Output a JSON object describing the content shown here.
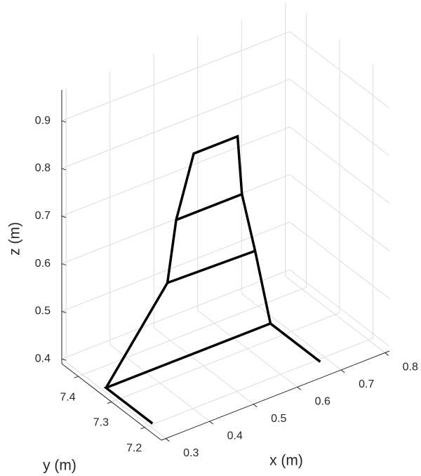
{
  "chart_data": {
    "type": "line3d",
    "xlabel": "x (m)",
    "ylabel": "y (m)",
    "zlabel": "z (m)",
    "xlim": [
      0.29,
      0.81
    ],
    "ylim": [
      7.15,
      7.45
    ],
    "zlim": [
      0.39,
      0.965
    ],
    "xticks": [
      0.3,
      0.4,
      0.5,
      0.6,
      0.7,
      0.8
    ],
    "yticks": [
      7.2,
      7.3,
      7.4
    ],
    "zticks": [
      0.4,
      0.5,
      0.6,
      0.7,
      0.8,
      0.9
    ],
    "grid": true,
    "color": "#000000",
    "series": [
      {
        "x": [
          0.3,
          0.3,
          0.675,
          0.675
        ],
        "y": [
          7.19,
          7.33,
          7.33,
          7.18
        ],
        "z": [
          0.4,
          0.4,
          0.4,
          0.4
        ]
      },
      {
        "x": [
          0.3,
          0.44,
          0.46,
          0.5,
          0.6,
          0.61,
          0.64,
          0.675
        ],
        "y": [
          7.33,
          7.33,
          7.33,
          7.33,
          7.33,
          7.33,
          7.33,
          7.33
        ],
        "z": [
          0.4,
          0.57,
          0.695,
          0.82,
          0.82,
          0.695,
          0.565,
          0.4
        ]
      },
      {
        "x": [
          0.44,
          0.64
        ],
        "y": [
          7.33,
          7.33
        ],
        "z": [
          0.57,
          0.565
        ]
      },
      {
        "x": [
          0.46,
          0.61
        ],
        "y": [
          7.33,
          7.33
        ],
        "z": [
          0.695,
          0.695
        ]
      }
    ]
  }
}
